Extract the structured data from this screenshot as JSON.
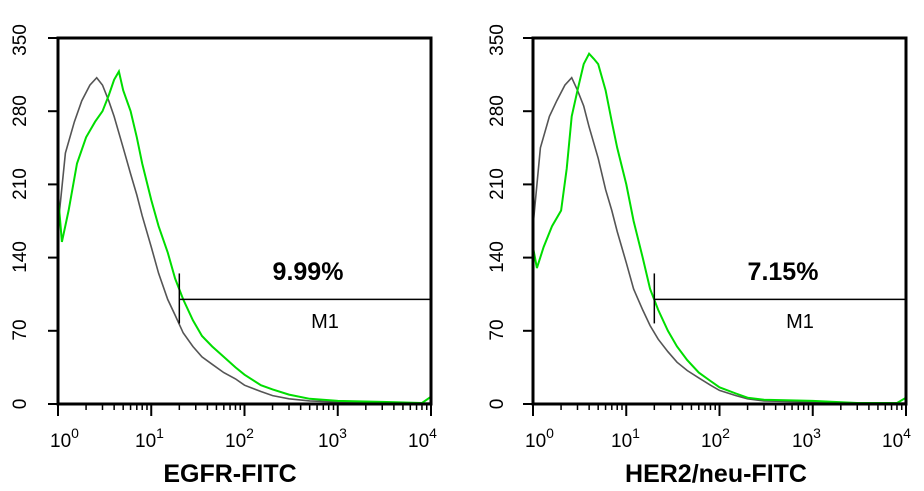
{
  "chart_data": [
    {
      "type": "line",
      "xlabel": "EGFR-FITC",
      "ylabel": "",
      "xscale": "log",
      "xlim": [
        1,
        10000
      ],
      "ylim": [
        0,
        350
      ],
      "x_ticks": [
        {
          "base": "10",
          "exp": "0"
        },
        {
          "base": "10",
          "exp": "1"
        },
        {
          "base": "10",
          "exp": "2"
        },
        {
          "base": "10",
          "exp": "3"
        },
        {
          "base": "10",
          "exp": "4"
        }
      ],
      "y_ticks": [
        "0",
        "70",
        "140",
        "210",
        "280",
        "350"
      ],
      "y_tick_values": [
        0,
        70,
        140,
        210,
        280,
        350
      ],
      "marker": {
        "label": "M1",
        "percent": "9.99%",
        "x_start": 20,
        "x_end": 10000,
        "y": 100
      },
      "series": [
        {
          "color": "#555555",
          "points": [
            [
              1,
              170
            ],
            [
              1.2,
              240
            ],
            [
              1.5,
              270
            ],
            [
              1.8,
              290
            ],
            [
              2.2,
              305
            ],
            [
              2.6,
              312
            ],
            [
              3,
              305
            ],
            [
              3.5,
              290
            ],
            [
              4,
              275
            ],
            [
              5,
              245
            ],
            [
              6,
              220
            ],
            [
              7,
              200
            ],
            [
              8,
              180
            ],
            [
              10,
              150
            ],
            [
              12,
              125
            ],
            [
              15,
              100
            ],
            [
              18,
              85
            ],
            [
              22,
              68
            ],
            [
              28,
              55
            ],
            [
              35,
              45
            ],
            [
              45,
              38
            ],
            [
              60,
              30
            ],
            [
              80,
              24
            ],
            [
              100,
              18
            ],
            [
              150,
              12
            ],
            [
              200,
              8
            ],
            [
              300,
              5
            ],
            [
              500,
              3
            ],
            [
              1000,
              2
            ],
            [
              3000,
              1
            ],
            [
              10000,
              1
            ]
          ]
        },
        {
          "color": "#00dd00",
          "points": [
            [
              1,
              200
            ],
            [
              1.1,
              155
            ],
            [
              1.3,
              185
            ],
            [
              1.6,
              230
            ],
            [
              2,
              255
            ],
            [
              2.5,
              270
            ],
            [
              3,
              280
            ],
            [
              3.5,
              295
            ],
            [
              4,
              310
            ],
            [
              4.5,
              318
            ],
            [
              5,
              300
            ],
            [
              6,
              280
            ],
            [
              7,
              255
            ],
            [
              8,
              230
            ],
            [
              10,
              195
            ],
            [
              12,
              170
            ],
            [
              15,
              145
            ],
            [
              18,
              120
            ],
            [
              22,
              100
            ],
            [
              28,
              80
            ],
            [
              35,
              65
            ],
            [
              45,
              55
            ],
            [
              60,
              45
            ],
            [
              80,
              35
            ],
            [
              100,
              28
            ],
            [
              150,
              18
            ],
            [
              200,
              14
            ],
            [
              300,
              9
            ],
            [
              500,
              5
            ],
            [
              1000,
              3
            ],
            [
              3000,
              2
            ],
            [
              8000,
              1
            ],
            [
              10000,
              7
            ]
          ]
        }
      ]
    },
    {
      "type": "line",
      "xlabel": "HER2/neu-FITC",
      "ylabel": "",
      "xscale": "log",
      "xlim": [
        1,
        10000
      ],
      "ylim": [
        0,
        350
      ],
      "x_ticks": [
        {
          "base": "10",
          "exp": "0"
        },
        {
          "base": "10",
          "exp": "1"
        },
        {
          "base": "10",
          "exp": "2"
        },
        {
          "base": "10",
          "exp": "3"
        },
        {
          "base": "10",
          "exp": "4"
        }
      ],
      "y_ticks": [
        "0",
        "70",
        "140",
        "210",
        "280",
        "350"
      ],
      "y_tick_values": [
        0,
        70,
        140,
        210,
        280,
        350
      ],
      "marker": {
        "label": "M1",
        "percent": "7.15%",
        "x_start": 20,
        "x_end": 10000,
        "y": 100
      },
      "series": [
        {
          "color": "#555555",
          "points": [
            [
              1,
              170
            ],
            [
              1.2,
              245
            ],
            [
              1.5,
              275
            ],
            [
              1.8,
              290
            ],
            [
              2.2,
              305
            ],
            [
              2.6,
              312
            ],
            [
              3,
              300
            ],
            [
              3.5,
              285
            ],
            [
              4,
              265
            ],
            [
              5,
              235
            ],
            [
              6,
              205
            ],
            [
              7,
              185
            ],
            [
              8,
              165
            ],
            [
              10,
              135
            ],
            [
              12,
              110
            ],
            [
              15,
              90
            ],
            [
              18,
              75
            ],
            [
              22,
              62
            ],
            [
              28,
              50
            ],
            [
              35,
              40
            ],
            [
              45,
              32
            ],
            [
              60,
              25
            ],
            [
              80,
              18
            ],
            [
              100,
              13
            ],
            [
              150,
              8
            ],
            [
              200,
              5
            ],
            [
              300,
              3
            ],
            [
              1000,
              2
            ],
            [
              3000,
              1
            ],
            [
              10000,
              1
            ]
          ]
        },
        {
          "color": "#00dd00",
          "points": [
            [
              1,
              150
            ],
            [
              1.1,
              130
            ],
            [
              1.3,
              150
            ],
            [
              1.6,
              170
            ],
            [
              2,
              185
            ],
            [
              2.3,
              225
            ],
            [
              2.6,
              275
            ],
            [
              3,
              300
            ],
            [
              3.5,
              325
            ],
            [
              4,
              335
            ],
            [
              4.5,
              330
            ],
            [
              5,
              325
            ],
            [
              6,
              300
            ],
            [
              7,
              270
            ],
            [
              8,
              245
            ],
            [
              10,
              210
            ],
            [
              12,
              175
            ],
            [
              15,
              140
            ],
            [
              18,
              110
            ],
            [
              22,
              90
            ],
            [
              28,
              70
            ],
            [
              35,
              55
            ],
            [
              45,
              42
            ],
            [
              60,
              30
            ],
            [
              80,
              22
            ],
            [
              100,
              16
            ],
            [
              150,
              10
            ],
            [
              200,
              6
            ],
            [
              300,
              4
            ],
            [
              1000,
              3
            ],
            [
              3000,
              1
            ],
            [
              8000,
              1
            ],
            [
              10000,
              6
            ]
          ]
        }
      ]
    }
  ]
}
